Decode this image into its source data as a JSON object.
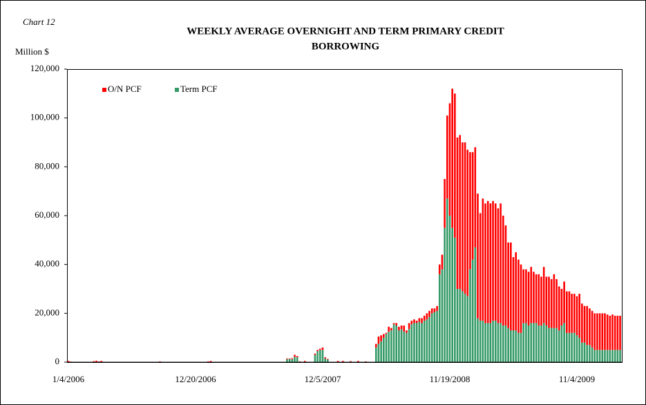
{
  "chart_data": {
    "type": "stacked_bar",
    "chart_label": "Chart 12",
    "title": [
      "WEEKLY AVERAGE OVERNIGHT  AND TERM PRIMARY CREDIT",
      "BORROWING"
    ],
    "y_label": "Million $",
    "legend": "upper left",
    "ylim": [
      0,
      120000
    ],
    "yticks": [
      0,
      {
        "value": 20000,
        "label": "20,000"
      },
      {
        "value": 40000,
        "label": "40,000"
      },
      {
        "value": 60000,
        "label": "60,000"
      },
      {
        "value": 80000,
        "label": "80,000"
      },
      {
        "value": 100000,
        "label": "100,000"
      },
      {
        "value": 120000,
        "label": "120,000"
      }
    ],
    "categories": [
      "1/4/2006",
      null,
      null,
      null,
      null,
      null,
      null,
      null,
      null,
      null,
      null,
      null,
      null,
      null,
      null,
      null,
      null,
      null,
      null,
      null,
      null,
      null,
      null,
      null,
      null,
      null,
      null,
      null,
      null,
      null,
      null,
      null,
      null,
      null,
      null,
      null,
      null,
      null,
      null,
      null,
      null,
      null,
      null,
      null,
      null,
      null,
      null,
      null,
      null,
      null,
      "12/20/2006",
      null,
      null,
      null,
      null,
      null,
      null,
      null,
      null,
      null,
      null,
      null,
      null,
      null,
      null,
      null,
      null,
      null,
      null,
      null,
      null,
      null,
      null,
      null,
      null,
      null,
      null,
      null,
      null,
      null,
      null,
      null,
      null,
      null,
      null,
      null,
      null,
      null,
      null,
      null,
      null,
      null,
      null,
      null,
      null,
      null,
      null,
      null,
      null,
      null,
      "12/5/2007",
      null,
      null,
      null,
      null,
      null,
      null,
      null,
      null,
      null,
      null,
      null,
      null,
      null,
      null,
      null,
      null,
      null,
      null,
      null,
      null,
      null,
      null,
      null,
      null,
      null,
      null,
      null,
      null,
      null,
      null,
      null,
      null,
      null,
      null,
      null,
      null,
      null,
      null,
      null,
      null,
      null,
      null,
      null,
      null,
      null,
      null,
      null,
      null,
      null,
      "11/19/2008",
      null,
      null,
      null,
      null,
      null,
      null,
      null,
      null,
      null,
      null,
      null,
      null,
      null,
      null,
      null,
      null,
      null,
      null,
      null,
      null,
      null,
      null,
      null,
      null,
      null,
      null,
      null,
      null,
      null,
      null,
      null,
      null,
      null,
      null,
      null,
      null,
      null,
      null,
      null,
      null,
      null,
      null,
      null,
      null,
      null,
      null,
      null,
      null,
      null,
      "11/4/2009",
      null,
      null,
      null,
      null,
      null,
      null,
      null,
      null,
      null,
      null,
      null,
      null,
      null,
      null,
      null,
      null,
      null
    ],
    "series": [
      {
        "name": "O/N PCF",
        "color": "#ff0000",
        "values": [
          500,
          200,
          0,
          0,
          0,
          0,
          0,
          0,
          0,
          0,
          400,
          600,
          300,
          500,
          0,
          0,
          0,
          0,
          0,
          0,
          0,
          0,
          0,
          0,
          0,
          0,
          0,
          0,
          0,
          0,
          0,
          0,
          0,
          0,
          0,
          0,
          300,
          0,
          0,
          0,
          0,
          0,
          0,
          0,
          0,
          0,
          0,
          0,
          0,
          0,
          0,
          0,
          0,
          0,
          0,
          300,
          500,
          0,
          0,
          0,
          0,
          0,
          0,
          0,
          0,
          0,
          0,
          0,
          0,
          0,
          0,
          0,
          0,
          0,
          0,
          0,
          0,
          0,
          0,
          0,
          0,
          0,
          0,
          0,
          0,
          0,
          300,
          200,
          400,
          800,
          500,
          300,
          0,
          500,
          0,
          0,
          0,
          500,
          500,
          500,
          1000,
          500,
          300,
          0,
          0,
          0,
          500,
          0,
          500,
          0,
          0,
          400,
          0,
          0,
          500,
          0,
          0,
          300,
          0,
          0,
          0,
          1500,
          3000,
          2500,
          1500,
          500,
          2000,
          1000,
          500,
          1000,
          1500,
          1500,
          2500,
          1000,
          2500,
          1500,
          1500,
          1000,
          1500,
          2000,
          2000,
          2500,
          2500,
          2000,
          1500,
          2000,
          4000,
          6000,
          20000,
          34000,
          46000,
          57000,
          59000,
          62000,
          63000,
          61000,
          62000,
          60000,
          48000,
          44000,
          41000,
          51000,
          44000,
          50000,
          49000,
          50000,
          49000,
          49000,
          48000,
          47000,
          49000,
          45000,
          41000,
          35000,
          36000,
          30000,
          32000,
          30000,
          28000,
          22000,
          22000,
          22000,
          23000,
          21000,
          20000,
          21000,
          20000,
          23000,
          20000,
          21000,
          20000,
          22000,
          20000,
          18000,
          15000,
          17000,
          17000,
          17000,
          16000,
          16000,
          16000,
          18000,
          16000,
          15000,
          16000,
          15000,
          15000,
          15000,
          15000,
          15000,
          15000,
          15000,
          14500,
          14000,
          14500,
          14000,
          14000,
          14000
        ]
      },
      {
        "name": "Term PCF",
        "color": "#339966",
        "values": [
          0,
          0,
          0,
          0,
          0,
          0,
          0,
          0,
          0,
          0,
          0,
          0,
          0,
          0,
          0,
          0,
          0,
          0,
          0,
          0,
          0,
          0,
          0,
          0,
          0,
          0,
          0,
          0,
          0,
          0,
          0,
          0,
          0,
          0,
          0,
          0,
          0,
          0,
          0,
          0,
          0,
          0,
          0,
          0,
          0,
          0,
          0,
          0,
          0,
          0,
          0,
          0,
          0,
          0,
          0,
          0,
          0,
          0,
          0,
          0,
          0,
          0,
          0,
          0,
          0,
          0,
          0,
          0,
          0,
          0,
          0,
          0,
          0,
          0,
          0,
          0,
          0,
          0,
          0,
          0,
          0,
          0,
          0,
          0,
          0,
          0,
          1200,
          1300,
          1200,
          2200,
          2000,
          0,
          0,
          0,
          0,
          0,
          0,
          3000,
          4500,
          5000,
          5000,
          1500,
          1000,
          0,
          0,
          0,
          0,
          0,
          0,
          0,
          0,
          0,
          0,
          0,
          0,
          0,
          0,
          0,
          0,
          0,
          0,
          6000,
          7500,
          8500,
          10000,
          11500,
          12500,
          13000,
          15500,
          15000,
          13000,
          13500,
          12500,
          12000,
          13500,
          15500,
          16000,
          16000,
          16500,
          16000,
          17000,
          17500,
          18500,
          20000,
          20500,
          21000,
          36000,
          38000,
          55000,
          67000,
          60000,
          55000,
          51000,
          30000,
          30000,
          29000,
          28000,
          27000,
          38000,
          42000,
          47000,
          18000,
          17000,
          17000,
          16000,
          16000,
          16000,
          17000,
          17000,
          16000,
          16000,
          15000,
          15000,
          14000,
          13000,
          13000,
          13000,
          12000,
          12000,
          16000,
          16000,
          15000,
          16000,
          16000,
          16000,
          15000,
          15000,
          16000,
          15000,
          14000,
          14000,
          14000,
          14000,
          13000,
          15000,
          16000,
          12000,
          12000,
          12000,
          12000,
          11000,
          10000,
          8000,
          8000,
          7000,
          7000,
          6000,
          5000,
          5000,
          5000,
          5000,
          5000,
          5000,
          5000,
          5000,
          5000,
          5000,
          5000
        ]
      }
    ]
  }
}
